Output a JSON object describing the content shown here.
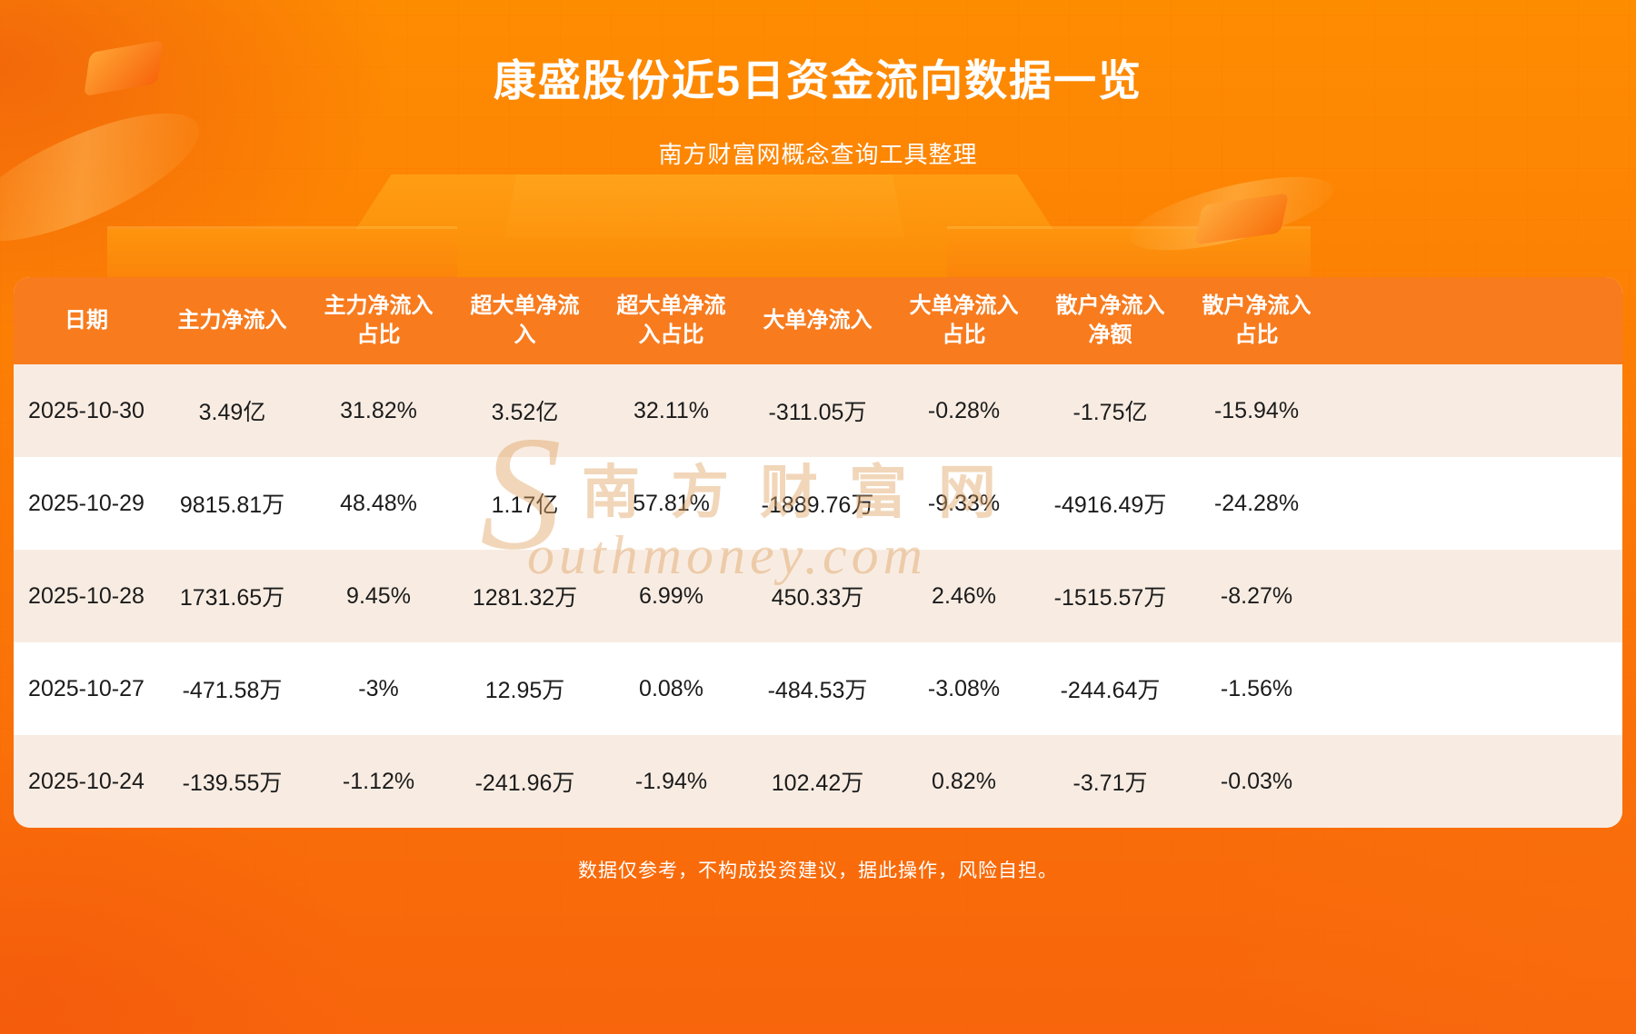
{
  "page": {
    "title": "康盛股份近5日资金流向数据一览",
    "subtitle": "南方财富网概念查询工具整理",
    "footer": "数据仅参考，不构成投资建议，据此操作，风险自担。"
  },
  "watermark": {
    "s": "S",
    "cn": "南方财富网",
    "en": "outhmoney.com"
  },
  "colors": {
    "background_top": "#fe8c01",
    "background_bottom": "#f8650c",
    "table_header": "#f87b1e",
    "row_alternate": "#f8ece2",
    "row_plain": "#ffffff",
    "text_dark": "#1b1b1b",
    "text_light": "#ffffff"
  },
  "table": {
    "header_labels": [
      "日期",
      "主力净流入",
      "主力净流入\n占比",
      "超大单净流\n入",
      "超大单净流\n入占比",
      "大单净流入",
      "大单净流入\n占比",
      "散户净流入\n净额",
      "散户净流入\n占比"
    ]
  },
  "chart_data": {
    "type": "table",
    "title": "康盛股份近5日资金流向数据一览",
    "source_note": "南方财富网概念查询工具整理",
    "columns": [
      "日期",
      "主力净流入",
      "主力净流入占比",
      "超大单净流入",
      "超大单净流入占比",
      "大单净流入",
      "大单净流入占比",
      "散户净流入净额",
      "散户净流入占比"
    ],
    "rows": [
      [
        "2025-10-30",
        "3.49亿",
        "31.82%",
        "3.52亿",
        "32.11%",
        "-311.05万",
        "-0.28%",
        "-1.75亿",
        "-15.94%"
      ],
      [
        "2025-10-29",
        "9815.81万",
        "48.48%",
        "1.17亿",
        "57.81%",
        "-1889.76万",
        "-9.33%",
        "-4916.49万",
        "-24.28%"
      ],
      [
        "2025-10-28",
        "1731.65万",
        "9.45%",
        "1281.32万",
        "6.99%",
        "450.33万",
        "2.46%",
        "-1515.57万",
        "-8.27%"
      ],
      [
        "2025-10-27",
        "-471.58万",
        "-3%",
        "12.95万",
        "0.08%",
        "-484.53万",
        "-3.08%",
        "-244.64万",
        "-1.56%"
      ],
      [
        "2025-10-24",
        "-139.55万",
        "-1.12%",
        "-241.96万",
        "-1.94%",
        "102.42万",
        "0.82%",
        "-3.71万",
        "-0.03%"
      ]
    ]
  }
}
